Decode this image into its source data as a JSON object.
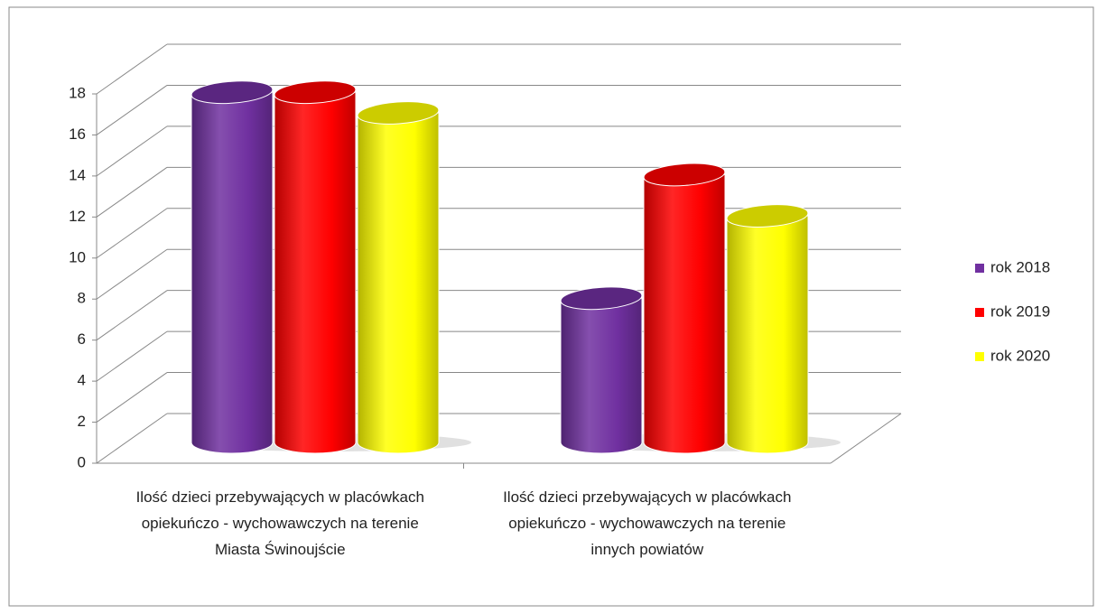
{
  "chart_data": {
    "type": "bar3d",
    "categories": [
      "Ilość dzieci przebywających w placówkach opiekuńczo - wychowawczych na terenie Miasta Świnoujście",
      "Ilość dzieci przebywających w placówkach opiekuńczo - wychowawczych na terenie innych powiatów"
    ],
    "series": [
      {
        "name": "rok 2018",
        "color": "#7030a0",
        "values": [
          17,
          7
        ]
      },
      {
        "name": "rok 2019",
        "color": "#ff0000",
        "values": [
          17,
          13
        ]
      },
      {
        "name": "rok 2020",
        "color": "#ffff00",
        "values": [
          16,
          11
        ]
      }
    ],
    "ylim": [
      0,
      18
    ],
    "yticks": [
      0,
      2,
      4,
      6,
      8,
      10,
      12,
      14,
      16,
      18
    ],
    "grid": true,
    "legend": "right"
  }
}
